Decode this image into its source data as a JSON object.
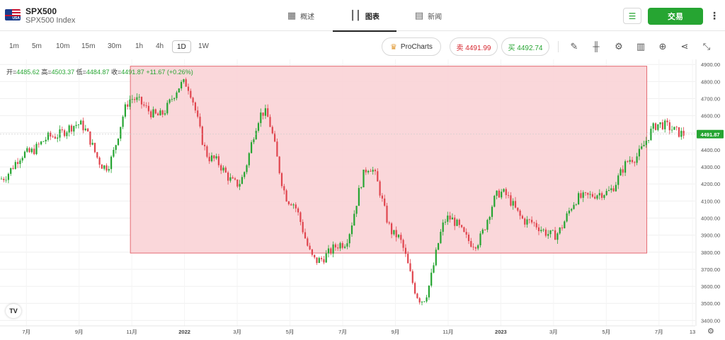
{
  "header": {
    "symbol": "SPX500",
    "name": "SPX500 Index",
    "flag_text": "USA",
    "tabs": [
      {
        "label": "概述",
        "icon": "grid-icon"
      },
      {
        "label": "图表",
        "icon": "candles-icon",
        "active": true
      },
      {
        "label": "新闻",
        "icon": "news-icon"
      }
    ],
    "trade_label": "交易"
  },
  "toolbar": {
    "timeframes": [
      "1m",
      "5m",
      "10m",
      "15m",
      "30m",
      "1h",
      "4h",
      "1D",
      "1W"
    ],
    "active_timeframe": "1D",
    "prochart_label": "ProCharts",
    "sell_label": "卖 4491.99",
    "buy_label": "买 4492.74",
    "tools": [
      "pencil-icon",
      "candles-icon",
      "gear-icon",
      "bars-icon",
      "plus-icon",
      "share-icon",
      "collapse-icon"
    ]
  },
  "ohlc": {
    "open_label": "开=",
    "open": "4485.62",
    "high_label": "高=",
    "high": "4503.37",
    "low_label": "低=",
    "low": "4484.87",
    "close_label": "收=",
    "close": "4491.87",
    "change": "+11.67 (+0.26%)"
  },
  "colors": {
    "up": "#26a532",
    "down": "#e0454e",
    "zone_fill": "#f9d3d6",
    "zone_stroke": "#e46b72",
    "price_tag": "#26a532"
  },
  "chart_data": {
    "type": "candlestick",
    "y_ticks": [
      "4900.00",
      "4800.00",
      "4700.00",
      "4600.00",
      "4500.00",
      "4400.00",
      "4300.00",
      "4200.00",
      "4100.00",
      "4000.00",
      "3900.00",
      "3800.00",
      "3700.00",
      "3600.00",
      "3500.00",
      "3400.00"
    ],
    "ylim": [
      3385,
      4930
    ],
    "x_ticks": [
      "7月",
      "9月",
      "11月",
      "2022",
      "3月",
      "5月",
      "7月",
      "9月",
      "11月",
      "2023",
      "3月",
      "5月",
      "7月",
      "13"
    ],
    "last_price": "4491.87",
    "last_value": 4491.87,
    "zone": {
      "from": "2021-11",
      "to": "2023-06",
      "high": 4890,
      "low": 3795
    },
    "series_key_points": [
      {
        "date": "2021-06",
        "value": 4230
      },
      {
        "date": "2021-07",
        "value": 4380
      },
      {
        "date": "2021-08",
        "value": 4480
      },
      {
        "date": "2021-09",
        "value": 4550
      },
      {
        "date": "2021-10",
        "value": 4300
      },
      {
        "date": "2021-11",
        "value": 4700
      },
      {
        "date": "2021-12",
        "value": 4600
      },
      {
        "date": "2022-01",
        "value": 4790
      },
      {
        "date": "2022-02",
        "value": 4350
      },
      {
        "date": "2022-03",
        "value": 4200
      },
      {
        "date": "2022-04",
        "value": 4620
      },
      {
        "date": "2022-05",
        "value": 4100
      },
      {
        "date": "2022-06",
        "value": 3750
      },
      {
        "date": "2022-07",
        "value": 3850
      },
      {
        "date": "2022-08",
        "value": 4300
      },
      {
        "date": "2022-09",
        "value": 3900
      },
      {
        "date": "2022-10",
        "value": 3520
      },
      {
        "date": "2022-11",
        "value": 4000
      },
      {
        "date": "2022-12",
        "value": 3850
      },
      {
        "date": "2023-01",
        "value": 4150
      },
      {
        "date": "2023-02",
        "value": 3980
      },
      {
        "date": "2023-03",
        "value": 3900
      },
      {
        "date": "2023-04",
        "value": 4120
      },
      {
        "date": "2023-05",
        "value": 4150
      },
      {
        "date": "2023-06",
        "value": 4350
      },
      {
        "date": "2023-07",
        "value": 4550
      },
      {
        "date": "2023-08",
        "value": 4491.87
      }
    ]
  }
}
